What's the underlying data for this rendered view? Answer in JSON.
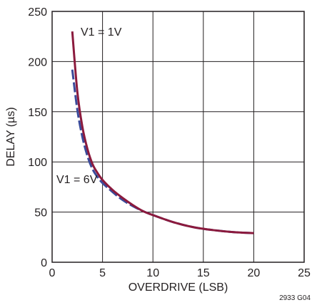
{
  "chart_data": {
    "type": "line",
    "xlabel": "OVERDRIVE (LSB)",
    "ylabel": "DELAY (µs)",
    "xlim": [
      0,
      25
    ],
    "ylim": [
      0,
      250
    ],
    "xticks": [
      0,
      5,
      10,
      15,
      20,
      25
    ],
    "yticks": [
      0,
      50,
      100,
      150,
      200,
      250
    ],
    "grid": true,
    "series": [
      {
        "name": "V1 = 1V",
        "style": "solid",
        "color": "#8b1a3d",
        "x": [
          2,
          2.5,
          3,
          3.5,
          4,
          4.5,
          5,
          6,
          7,
          8,
          9,
          10,
          12,
          14,
          16,
          18,
          20
        ],
        "y": [
          230,
          170,
          135,
          113,
          98,
          89,
          82,
          72,
          64,
          57,
          51,
          47,
          40,
          35,
          32,
          30,
          29
        ]
      },
      {
        "name": "V1 = 6V",
        "style": "dashed",
        "color": "#3a4a9a",
        "x": [
          2,
          2.5,
          3,
          3.5,
          4,
          4.5,
          5,
          6,
          7,
          8,
          9,
          10,
          12,
          14,
          16,
          18,
          20
        ],
        "y": [
          192,
          152,
          125,
          106,
          93,
          85,
          79,
          70,
          62,
          56,
          51,
          47,
          40,
          35,
          32,
          30,
          29
        ]
      }
    ],
    "annotations": [
      "V1 = 1V",
      "V1 = 6V"
    ],
    "figure_id": "2933 G04"
  }
}
